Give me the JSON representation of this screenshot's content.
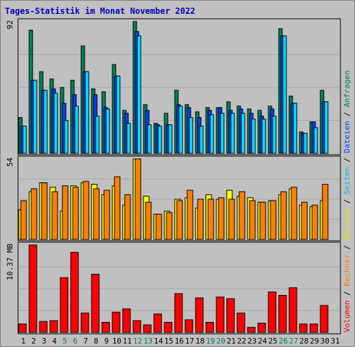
{
  "chart_data": {
    "title": "Tages-Statistik im Monat November 2022",
    "type": "bar",
    "days": [
      "1",
      "2",
      "3",
      "4",
      "5",
      "6",
      "7",
      "8",
      "9",
      "10",
      "11",
      "12",
      "13",
      "14",
      "15",
      "16",
      "17",
      "18",
      "19",
      "20",
      "21",
      "22",
      "23",
      "24",
      "25",
      "26",
      "27",
      "28",
      "29",
      "30",
      "31"
    ],
    "weekend_days": [
      "5",
      "6",
      "12",
      "13",
      "19",
      "20",
      "26",
      "27"
    ],
    "panels": [
      {
        "id": "requests",
        "ymax_label": "92",
        "ymax": 92,
        "right_labels": [
          "Anfragen",
          "Dateien",
          "Seiten"
        ],
        "series": [
          {
            "name": "Anfragen",
            "color": "#008060",
            "values": [
              25,
              86,
              57,
              52,
              46,
              51,
              75,
              45,
              43,
              62,
              30,
              92,
              34,
              21,
              28,
              44,
              34,
              29,
              32,
              32,
              36,
              33,
              31,
              30,
              33,
              87,
              40,
              15,
              22,
              44,
              0
            ]
          },
          {
            "name": "Dateien",
            "color": "#0040ff",
            "values": [
              19,
              51,
              44,
              45,
              35,
              41,
              57,
              41,
              32,
              54,
              28,
              85,
              30,
              20,
              20,
              34,
              32,
              25,
              30,
              32,
              30,
              31,
              28,
              26,
              31,
              82,
              35,
              14,
              22,
              36,
              0
            ]
          },
          {
            "name": "Seiten",
            "color": "#00e0ff",
            "values": [
              19,
              51,
              44,
              42,
              23,
              33,
              57,
              26,
              31,
              54,
              21,
              82,
              20,
              19,
              20,
              33,
              25,
              19,
              27,
              28,
              28,
              28,
              24,
              24,
              26,
              82,
              35,
              14,
              18,
              36,
              0
            ]
          }
        ]
      },
      {
        "id": "visits",
        "ymax_label": "54",
        "ymax": 54,
        "right_labels": [
          "Besuche",
          "Rechner"
        ],
        "series": [
          {
            "name": "Besuche",
            "color": "#ffff00",
            "values": [
              20,
              32,
              38,
              35,
              19,
              36,
              38,
              37,
              30,
              36,
              23,
              54,
              29,
              17,
              19,
              27,
              28,
              21,
              30,
              27,
              33,
              29,
              28,
              25,
              26,
              30,
              34,
              23,
              22,
              26,
              0
            ]
          },
          {
            "name": "Rechner",
            "color": "#ff8000",
            "values": [
              26,
              34,
              38,
              32,
              36,
              35,
              39,
              34,
              33,
              42,
              30,
              54,
              25,
              17,
              18,
              26,
              33,
              27,
              27,
              28,
              27,
              32,
              26,
              25,
              26,
              32,
              35,
              25,
              23,
              37,
              0
            ]
          }
        ]
      },
      {
        "id": "volume",
        "ymax_label": "10.37 MB",
        "ymax": 10.37,
        "right_labels": [
          "Volumen"
        ],
        "series": [
          {
            "name": "Volumen",
            "color": "#ff0000",
            "values": [
              1.0,
              10.37,
              1.3,
              1.4,
              6.5,
              9.5,
              2.3,
              6.9,
              1.2,
              2.4,
              2.8,
              1.4,
              0.9,
              2.2,
              1.2,
              4.6,
              1.5,
              4.1,
              1.2,
              4.2,
              4.0,
              2.3,
              0.6,
              1.1,
              4.8,
              4.4,
              5.3,
              1.0,
              1.0,
              3.2,
              0
            ]
          }
        ]
      }
    ]
  }
}
